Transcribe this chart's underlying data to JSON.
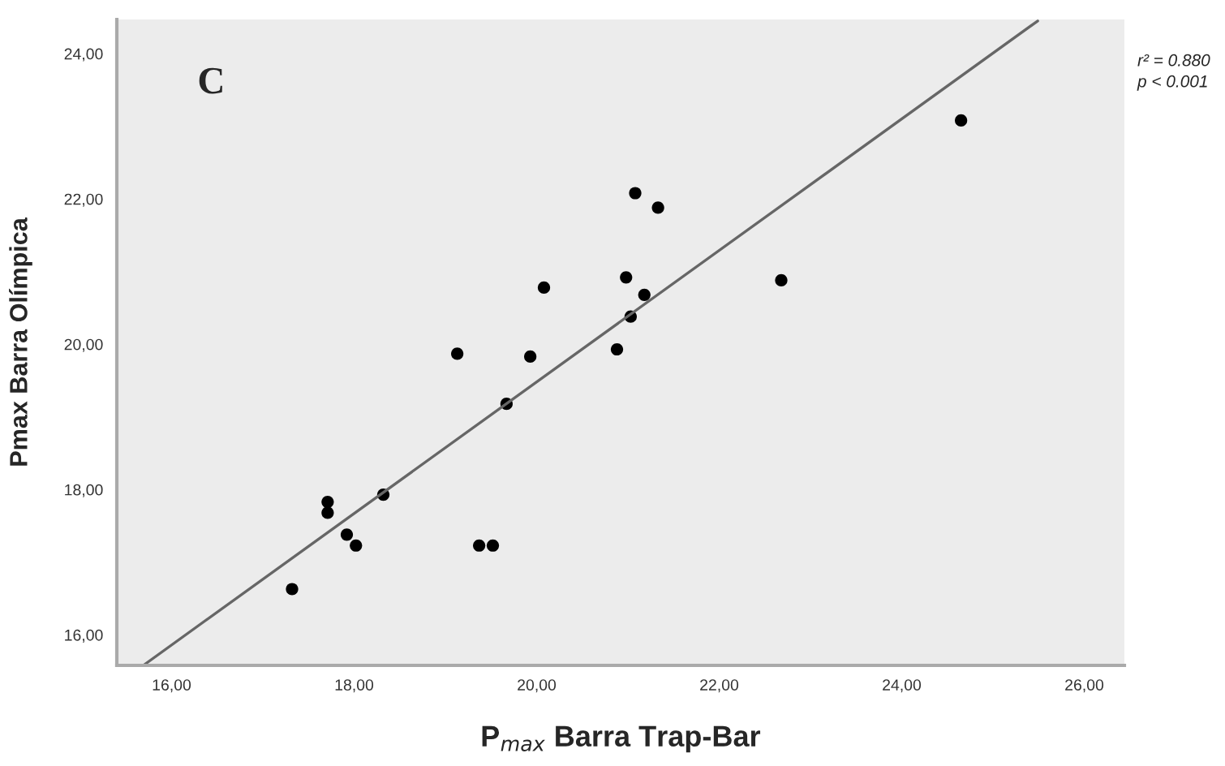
{
  "chart_data": {
    "type": "scatter",
    "xlabel": "P$_{max}$ Barra Trap-Bar",
    "ylabel": "Pmax Barra Olímpica",
    "annotations": [
      "C",
      "r² = 0.880",
      "p < 0.001"
    ],
    "xlim": [
      15.4,
      26.44
    ],
    "ylim": [
      15.58,
      24.47
    ],
    "xticks": [
      {
        "value": 16,
        "label": "16,00"
      },
      {
        "value": 18,
        "label": "18,00"
      },
      {
        "value": 20,
        "label": "20,00"
      },
      {
        "value": 22,
        "label": "22,00"
      },
      {
        "value": 24,
        "label": "24,00"
      },
      {
        "value": 26,
        "label": "26,00"
      }
    ],
    "yticks": [
      {
        "value": 16,
        "label": "16,00"
      },
      {
        "value": 18,
        "label": "18,00"
      },
      {
        "value": 20,
        "label": "20,00"
      },
      {
        "value": 22,
        "label": "22,00"
      },
      {
        "value": 24,
        "label": "24,00"
      }
    ],
    "grid": false,
    "series": [
      {
        "marker": "circle",
        "color": "#000000",
        "x": [
          17.32,
          17.71,
          17.71,
          17.92,
          18.02,
          18.32,
          19.37,
          19.52,
          19.67,
          19.13,
          19.93,
          20.08,
          21.08,
          21.33,
          20.98,
          21.18,
          21.03,
          20.88,
          22.68,
          24.65
        ],
        "values": [
          16.63,
          17.83,
          17.68,
          17.38,
          17.23,
          17.93,
          17.23,
          17.23,
          19.18,
          19.87,
          19.83,
          20.78,
          22.08,
          21.88,
          20.92,
          20.68,
          20.38,
          19.93,
          20.88,
          23.08
        ]
      },
      {
        "type": "line",
        "color": "#666666",
        "line_style": "solid",
        "x": [
          15.69,
          25.49
        ],
        "values": [
          15.58,
          24.45
        ]
      }
    ]
  }
}
